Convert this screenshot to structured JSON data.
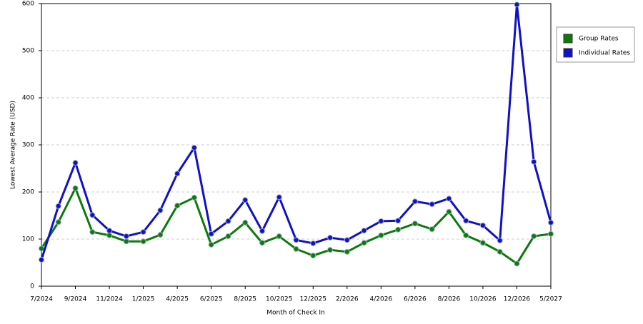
{
  "chart_data": {
    "type": "line",
    "x_label": "Month of Check In",
    "y_label": "Lowest Average Rate (USD)",
    "categories": [
      "7/2024",
      null,
      "9/2024",
      null,
      "11/2024",
      null,
      "1/2025",
      null,
      "4/2025",
      null,
      "6/2025",
      null,
      "8/2025",
      null,
      "10/2025",
      null,
      "12/2025",
      null,
      "2/2026",
      null,
      "4/2026",
      null,
      "6/2026",
      null,
      "8/2026",
      null,
      "10/2026",
      null,
      "12/2026",
      null,
      "5/2027"
    ],
    "series": [
      {
        "name": "Group Rates",
        "color": "#0c7a0c",
        "values": [
          80,
          136,
          208,
          115,
          108,
          95,
          95,
          109,
          171,
          188,
          88,
          106,
          135,
          92,
          106,
          79,
          65,
          77,
          73,
          92,
          108,
          120,
          133,
          121,
          158,
          108,
          92,
          73,
          48,
          106,
          111
        ]
      },
      {
        "name": "Individual Rates",
        "color": "#1010c8",
        "values": [
          56,
          170,
          262,
          151,
          118,
          106,
          115,
          161,
          239,
          294,
          111,
          138,
          183,
          117,
          189,
          98,
          91,
          103,
          98,
          118,
          138,
          139,
          180,
          174,
          186,
          139,
          129,
          97,
          598,
          264,
          135
        ]
      }
    ],
    "ylim": [
      0,
      600
    ],
    "yticks": [
      0,
      100,
      200,
      300,
      400,
      500,
      600
    ],
    "grid": true
  }
}
